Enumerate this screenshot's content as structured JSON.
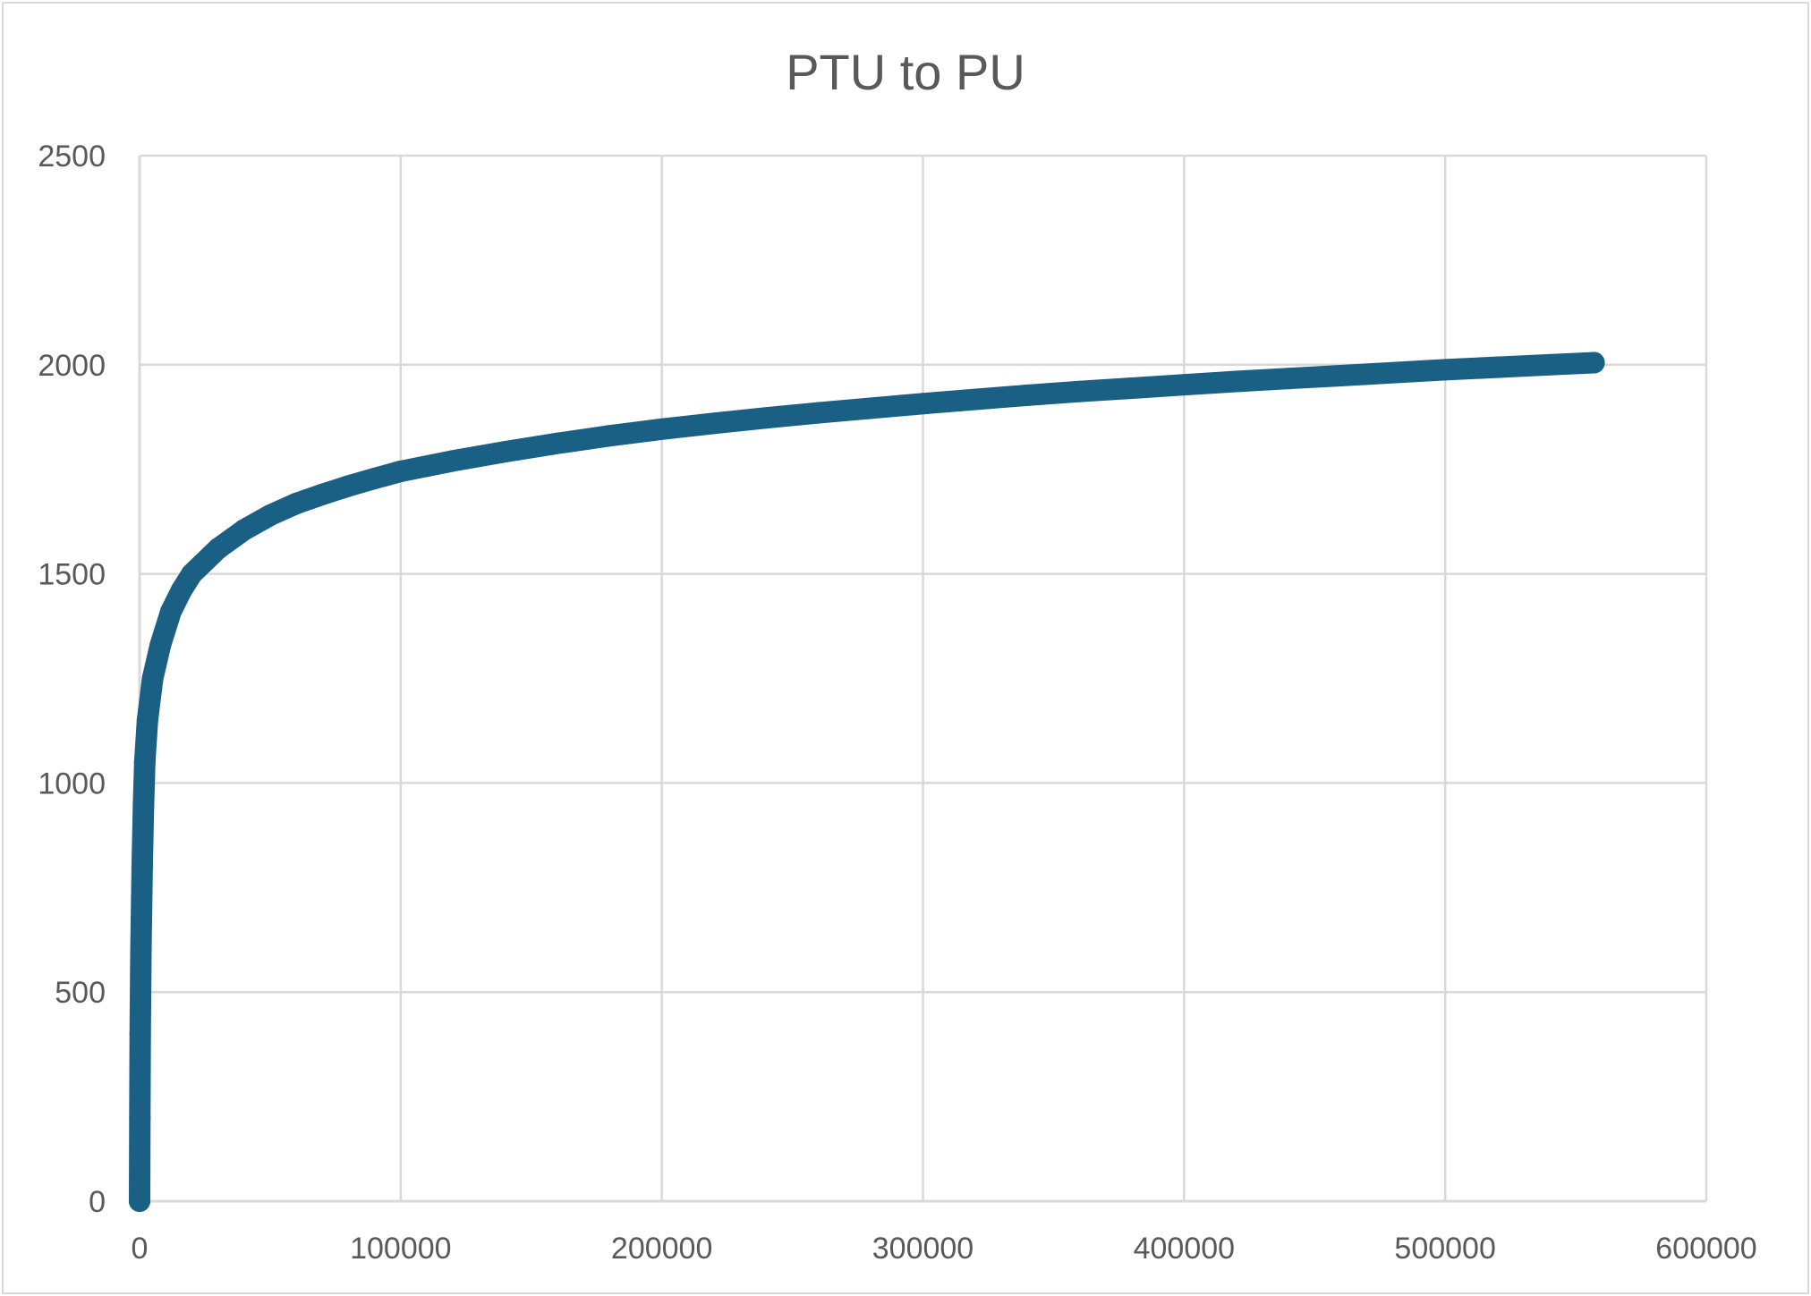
{
  "chart_data": {
    "type": "scatter",
    "title": "PTU to PU",
    "xlabel": "",
    "ylabel": "",
    "xlim": [
      0,
      600000
    ],
    "ylim": [
      0,
      2500
    ],
    "x_ticks": [
      "0",
      "100000",
      "200000",
      "300000",
      "400000",
      "500000",
      "600000"
    ],
    "y_ticks": [
      "0",
      "500",
      "1000",
      "1500",
      "2000",
      "2500"
    ],
    "grid": true,
    "legend": "none",
    "series": [
      {
        "color": "#1a5f84",
        "points": [
          [
            0,
            0
          ],
          [
            100,
            200
          ],
          [
            250,
            400
          ],
          [
            500,
            600
          ],
          [
            1000,
            800
          ],
          [
            1500,
            950
          ],
          [
            2000,
            1050
          ],
          [
            3000,
            1150
          ],
          [
            5000,
            1250
          ],
          [
            8000,
            1330
          ],
          [
            12000,
            1410
          ],
          [
            16000,
            1460
          ],
          [
            20000,
            1500
          ],
          [
            30000,
            1560
          ],
          [
            40000,
            1605
          ],
          [
            50000,
            1640
          ],
          [
            60000,
            1668
          ],
          [
            70000,
            1690
          ],
          [
            80000,
            1710
          ],
          [
            90000,
            1728
          ],
          [
            100000,
            1745
          ],
          [
            120000,
            1770
          ],
          [
            140000,
            1792
          ],
          [
            160000,
            1812
          ],
          [
            180000,
            1830
          ],
          [
            200000,
            1846
          ],
          [
            220000,
            1860
          ],
          [
            240000,
            1873
          ],
          [
            260000,
            1885
          ],
          [
            280000,
            1896
          ],
          [
            300000,
            1907
          ],
          [
            320000,
            1917
          ],
          [
            340000,
            1927
          ],
          [
            360000,
            1936
          ],
          [
            380000,
            1944
          ],
          [
            400000,
            1952
          ],
          [
            420000,
            1960
          ],
          [
            440000,
            1967
          ],
          [
            460000,
            1974
          ],
          [
            480000,
            1981
          ],
          [
            500000,
            1988
          ],
          [
            520000,
            1994
          ],
          [
            540000,
            2000
          ],
          [
            557000,
            2005
          ]
        ]
      }
    ]
  }
}
